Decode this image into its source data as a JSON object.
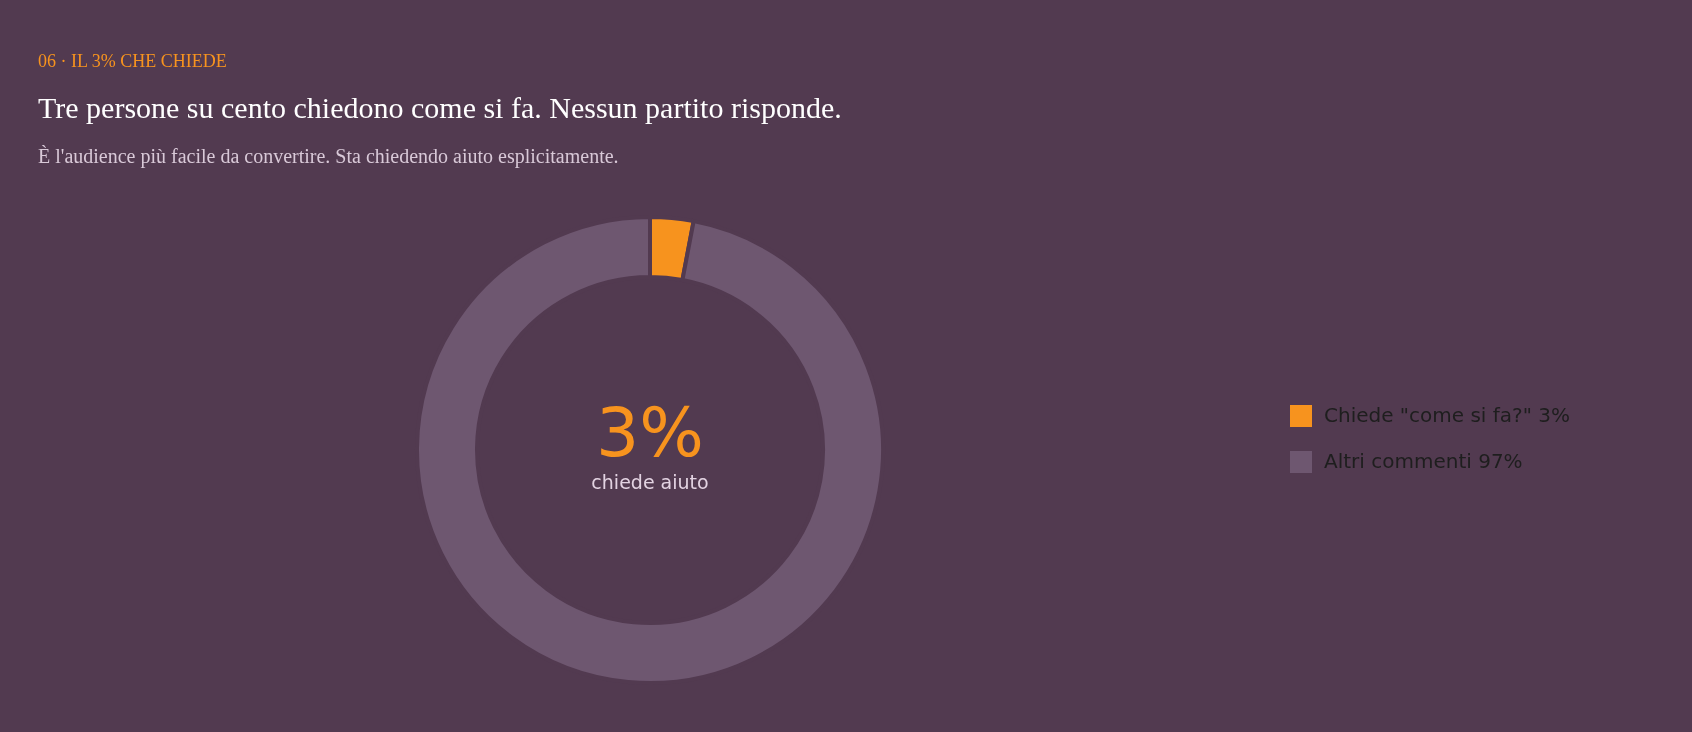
{
  "chart_data": {
    "type": "donut",
    "title": "Tre persone su cento chiedono come si fa. Nessun partito risponde.",
    "subtitle": "È l'audience più facile da convertire. Sta chiedendo aiuto esplicitamente.",
    "categories": [
      "Chiede \"come si fa?\"",
      "Altri commenti"
    ],
    "values": [
      3,
      97
    ],
    "colors": [
      "#f7931e",
      "#6e5770"
    ],
    "value_labels": [
      "3%",
      "97%"
    ],
    "legend": "right",
    "annotations": [
      "06 · IL 3% CHE CHIEDE",
      "3%",
      "chiede aiuto"
    ]
  }
}
